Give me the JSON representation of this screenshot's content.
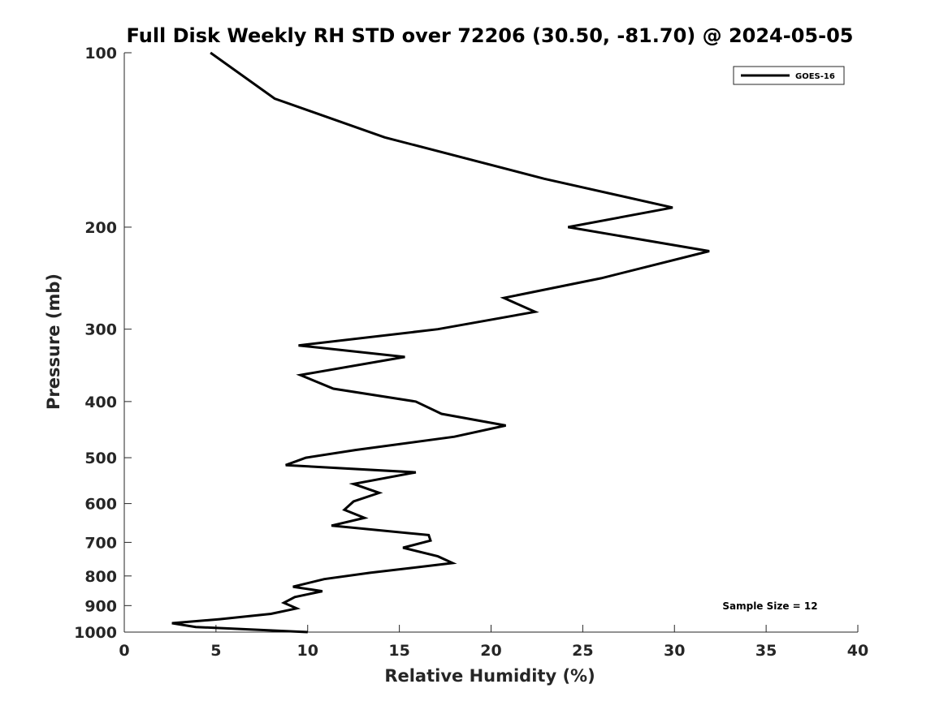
{
  "chart_data": {
    "type": "line",
    "title": "Full Disk Weekly RH STD over 72206 (30.50, -81.70) @ 2024-05-05",
    "xlabel": "Relative Humidity (%)",
    "ylabel": "Pressure (mb)",
    "xlim": [
      0,
      40
    ],
    "ylim": [
      1000,
      100
    ],
    "yscale": "log",
    "xticks": [
      0,
      5,
      10,
      15,
      20,
      25,
      30,
      35,
      40
    ],
    "yticks": [
      100,
      200,
      300,
      400,
      500,
      600,
      700,
      800,
      900,
      1000
    ],
    "legend_position": "top-right",
    "annotation": "Sample Size = 12",
    "series": [
      {
        "name": "GOES-16",
        "color": "#000000",
        "x": [
          4.7,
          8.2,
          14.2,
          22.9,
          29.9,
          24.2,
          31.9,
          26.0,
          20.7,
          22.4,
          17.1,
          9.5,
          15.3,
          9.6,
          11.4,
          15.9,
          17.3,
          20.8,
          18.0,
          12.6,
          9.9,
          8.8,
          15.9,
          12.5,
          13.9,
          12.5,
          12.0,
          13.1,
          11.3,
          16.6,
          16.7,
          15.2,
          17.1,
          17.9,
          13.4,
          10.9,
          9.2,
          10.8,
          9.3,
          8.7,
          9.4,
          8.0,
          5.2,
          2.6,
          3.9,
          10.0
        ],
        "y": [
          100,
          120,
          140,
          165,
          185,
          200,
          220,
          245,
          265,
          280,
          300,
          320,
          335,
          360,
          380,
          400,
          420,
          440,
          460,
          485,
          500,
          515,
          530,
          555,
          575,
          595,
          615,
          635,
          655,
          680,
          695,
          715,
          740,
          760,
          790,
          810,
          835,
          850,
          870,
          890,
          910,
          930,
          950,
          965,
          980,
          1000
        ]
      }
    ]
  }
}
